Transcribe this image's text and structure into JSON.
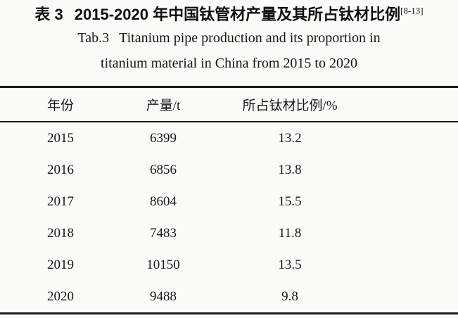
{
  "caption": {
    "zh_label": "表 3",
    "zh_title": "2015-2020 年中国钛管材产量及其所占钛材比例",
    "zh_citation": "[8-13]",
    "en_label": "Tab.3",
    "en_title_line1": "Titanium pipe production and its proportion in",
    "en_title_line2": "titanium material in China from 2015 to 2020"
  },
  "table": {
    "columns": [
      "年份",
      "产量/t",
      "所占钛材比例/%"
    ],
    "rows": [
      {
        "year": "2015",
        "production_t": "6399",
        "proportion_pct": "13.2"
      },
      {
        "year": "2016",
        "production_t": "6856",
        "proportion_pct": "13.8"
      },
      {
        "year": "2017",
        "production_t": "8604",
        "proportion_pct": "15.5"
      },
      {
        "year": "2018",
        "production_t": "7483",
        "proportion_pct": "11.8"
      },
      {
        "year": "2019",
        "production_t": "10150",
        "proportion_pct": "13.5"
      },
      {
        "year": "2020",
        "production_t": "9488",
        "proportion_pct": "9.8"
      }
    ]
  }
}
